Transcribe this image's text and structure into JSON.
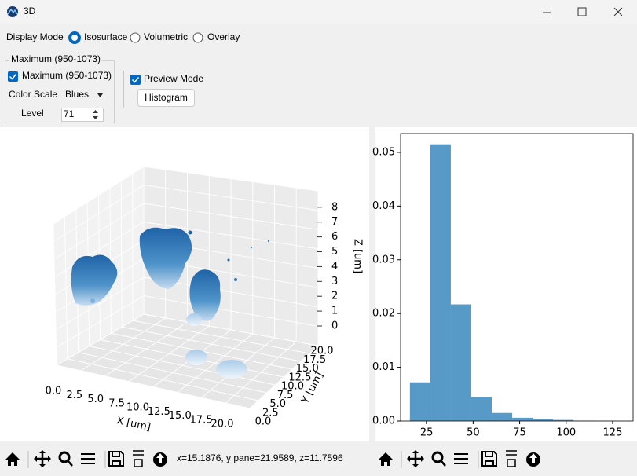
{
  "window": {
    "title": "3D"
  },
  "controls": {
    "display_mode_label": "Display Mode",
    "modes": [
      "Isosurface",
      "Volumetric",
      "Overlay"
    ],
    "group_title": "Maximum (950-1073)",
    "maximum_checkbox": "Maximum (950-1073)",
    "color_scale_label": "Color Scale",
    "color_scale_value": "Blues",
    "level_label": "Level",
    "level_value": 71,
    "preview_mode": "Preview Mode",
    "histogram_button": "Histogram"
  },
  "plot3d": {
    "xticks": [
      "0.0",
      "2.5",
      "5.0",
      "7.5",
      "10.0",
      "12.5",
      "15.0",
      "17.5",
      "20.0"
    ],
    "yticks": [
      "0.0",
      "2.5",
      "5.0",
      "7.5",
      "10.0",
      "12.5",
      "15.0",
      "17.5",
      "20.0"
    ],
    "zticks": [
      0,
      1,
      2,
      3,
      4,
      5,
      6,
      7,
      8
    ],
    "xlabel": "X [um]",
    "ylabel": "Y [um]",
    "zlabel": "Z [um]"
  },
  "status": "x=15.1876, y pane=21.9589, z=11.7596",
  "chart_data": {
    "type": "histogram",
    "bins": [
      16,
      27,
      38,
      49,
      60,
      71,
      82,
      93,
      104,
      115,
      126
    ],
    "values": [
      0.0072,
      0.0515,
      0.0217,
      0.0045,
      0.0015,
      0.0006,
      0.0003,
      0.0002,
      5e-05,
      2e-05
    ],
    "color": "#5799c7",
    "xlim": [
      11,
      136
    ],
    "xticks": [
      25,
      50,
      75,
      100,
      125
    ],
    "ylim": [
      0,
      0.0535
    ],
    "yticks": [
      {
        "value": 0,
        "label": "0.00"
      },
      {
        "value": 0.01,
        "label": "0.01"
      },
      {
        "value": 0.02,
        "label": "0.02"
      },
      {
        "value": 0.03,
        "label": "0.03"
      },
      {
        "value": 0.04,
        "label": "0.04"
      },
      {
        "value": 0.05,
        "label": "0.05"
      }
    ]
  }
}
